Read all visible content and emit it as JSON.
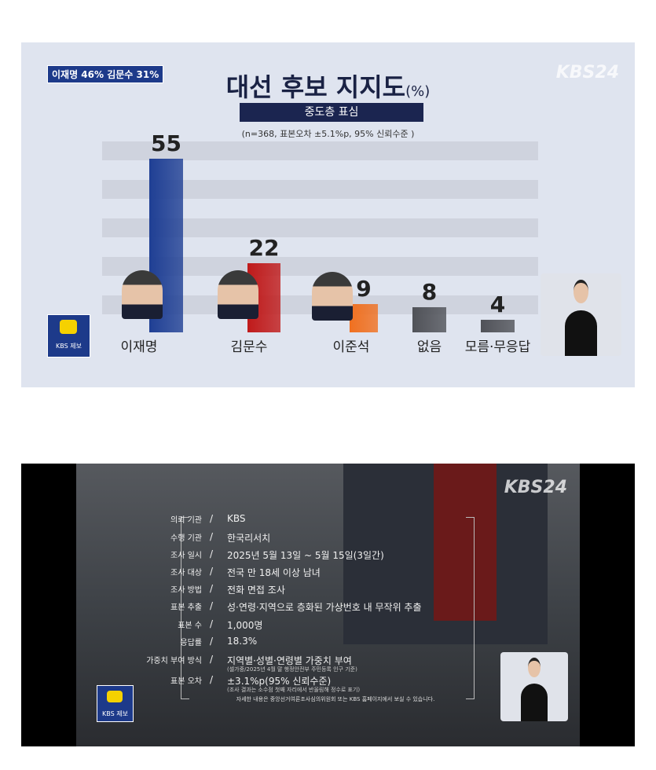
{
  "top": {
    "badge": "이재명 46% 김문수 31%",
    "logo": "KBS24",
    "title": "대선 후보 지지도",
    "title_unit": "(%)",
    "subtitle": "중도층 표심",
    "note": "(n=368, 표본오차 ±5.1%p, 95% 신뢰수준 )",
    "kakao_label": "KBS 제보"
  },
  "chart_data": {
    "type": "bar",
    "title": "대선 후보 지지도(%)",
    "subtitle": "중도층 표심",
    "categories": [
      "이재명",
      "김문수",
      "이준석",
      "없음",
      "모름·무응답"
    ],
    "values": [
      55,
      22,
      9,
      8,
      4
    ],
    "colors": [
      "#1f3f94",
      "#c01a1a",
      "#f07020",
      "#505258",
      "#505258"
    ],
    "grid": true
  },
  "bottom": {
    "logo": "KBS24",
    "kakao_label": "KBS 제보",
    "rows": [
      {
        "k": "의뢰 기관",
        "v": "KBS",
        "f": ""
      },
      {
        "k": "수행 기관",
        "v": "한국리서치",
        "f": ""
      },
      {
        "k": "조사 일시",
        "v": "2025년 5월 13일 ~ 5월 15일(3일간)",
        "f": ""
      },
      {
        "k": "조사 대상",
        "v": "전국 만 18세 이상 남녀",
        "f": ""
      },
      {
        "k": "조사 방법",
        "v": "전화 면접 조사",
        "f": ""
      },
      {
        "k": "표본 추출",
        "v": "성·연령·지역으로 층화된 가상번호 내 무작위 추출",
        "f": ""
      },
      {
        "k": "표본 수",
        "v": "1,000명",
        "f": ""
      },
      {
        "k": "응답률",
        "v": "18.3%",
        "f": ""
      },
      {
        "k": "가중치 부여 방식",
        "v": "지역별·성별·연령별 가중치 부여",
        "f": "(셀가중/2025년 4월 말 행정안전부 주민등록 인구 기준)"
      },
      {
        "k": "표본 오차",
        "v": "±3.1%p(95% 신뢰수준)",
        "f": "(조사 결과는 소수점 첫째 자리에서 반올림해 정수로 표기)"
      }
    ],
    "sep": "/",
    "footer": "자세한 내용은 중앙선거여론조사심의위원회 또는 KBS 홈페이지에서 보실 수 있습니다."
  }
}
